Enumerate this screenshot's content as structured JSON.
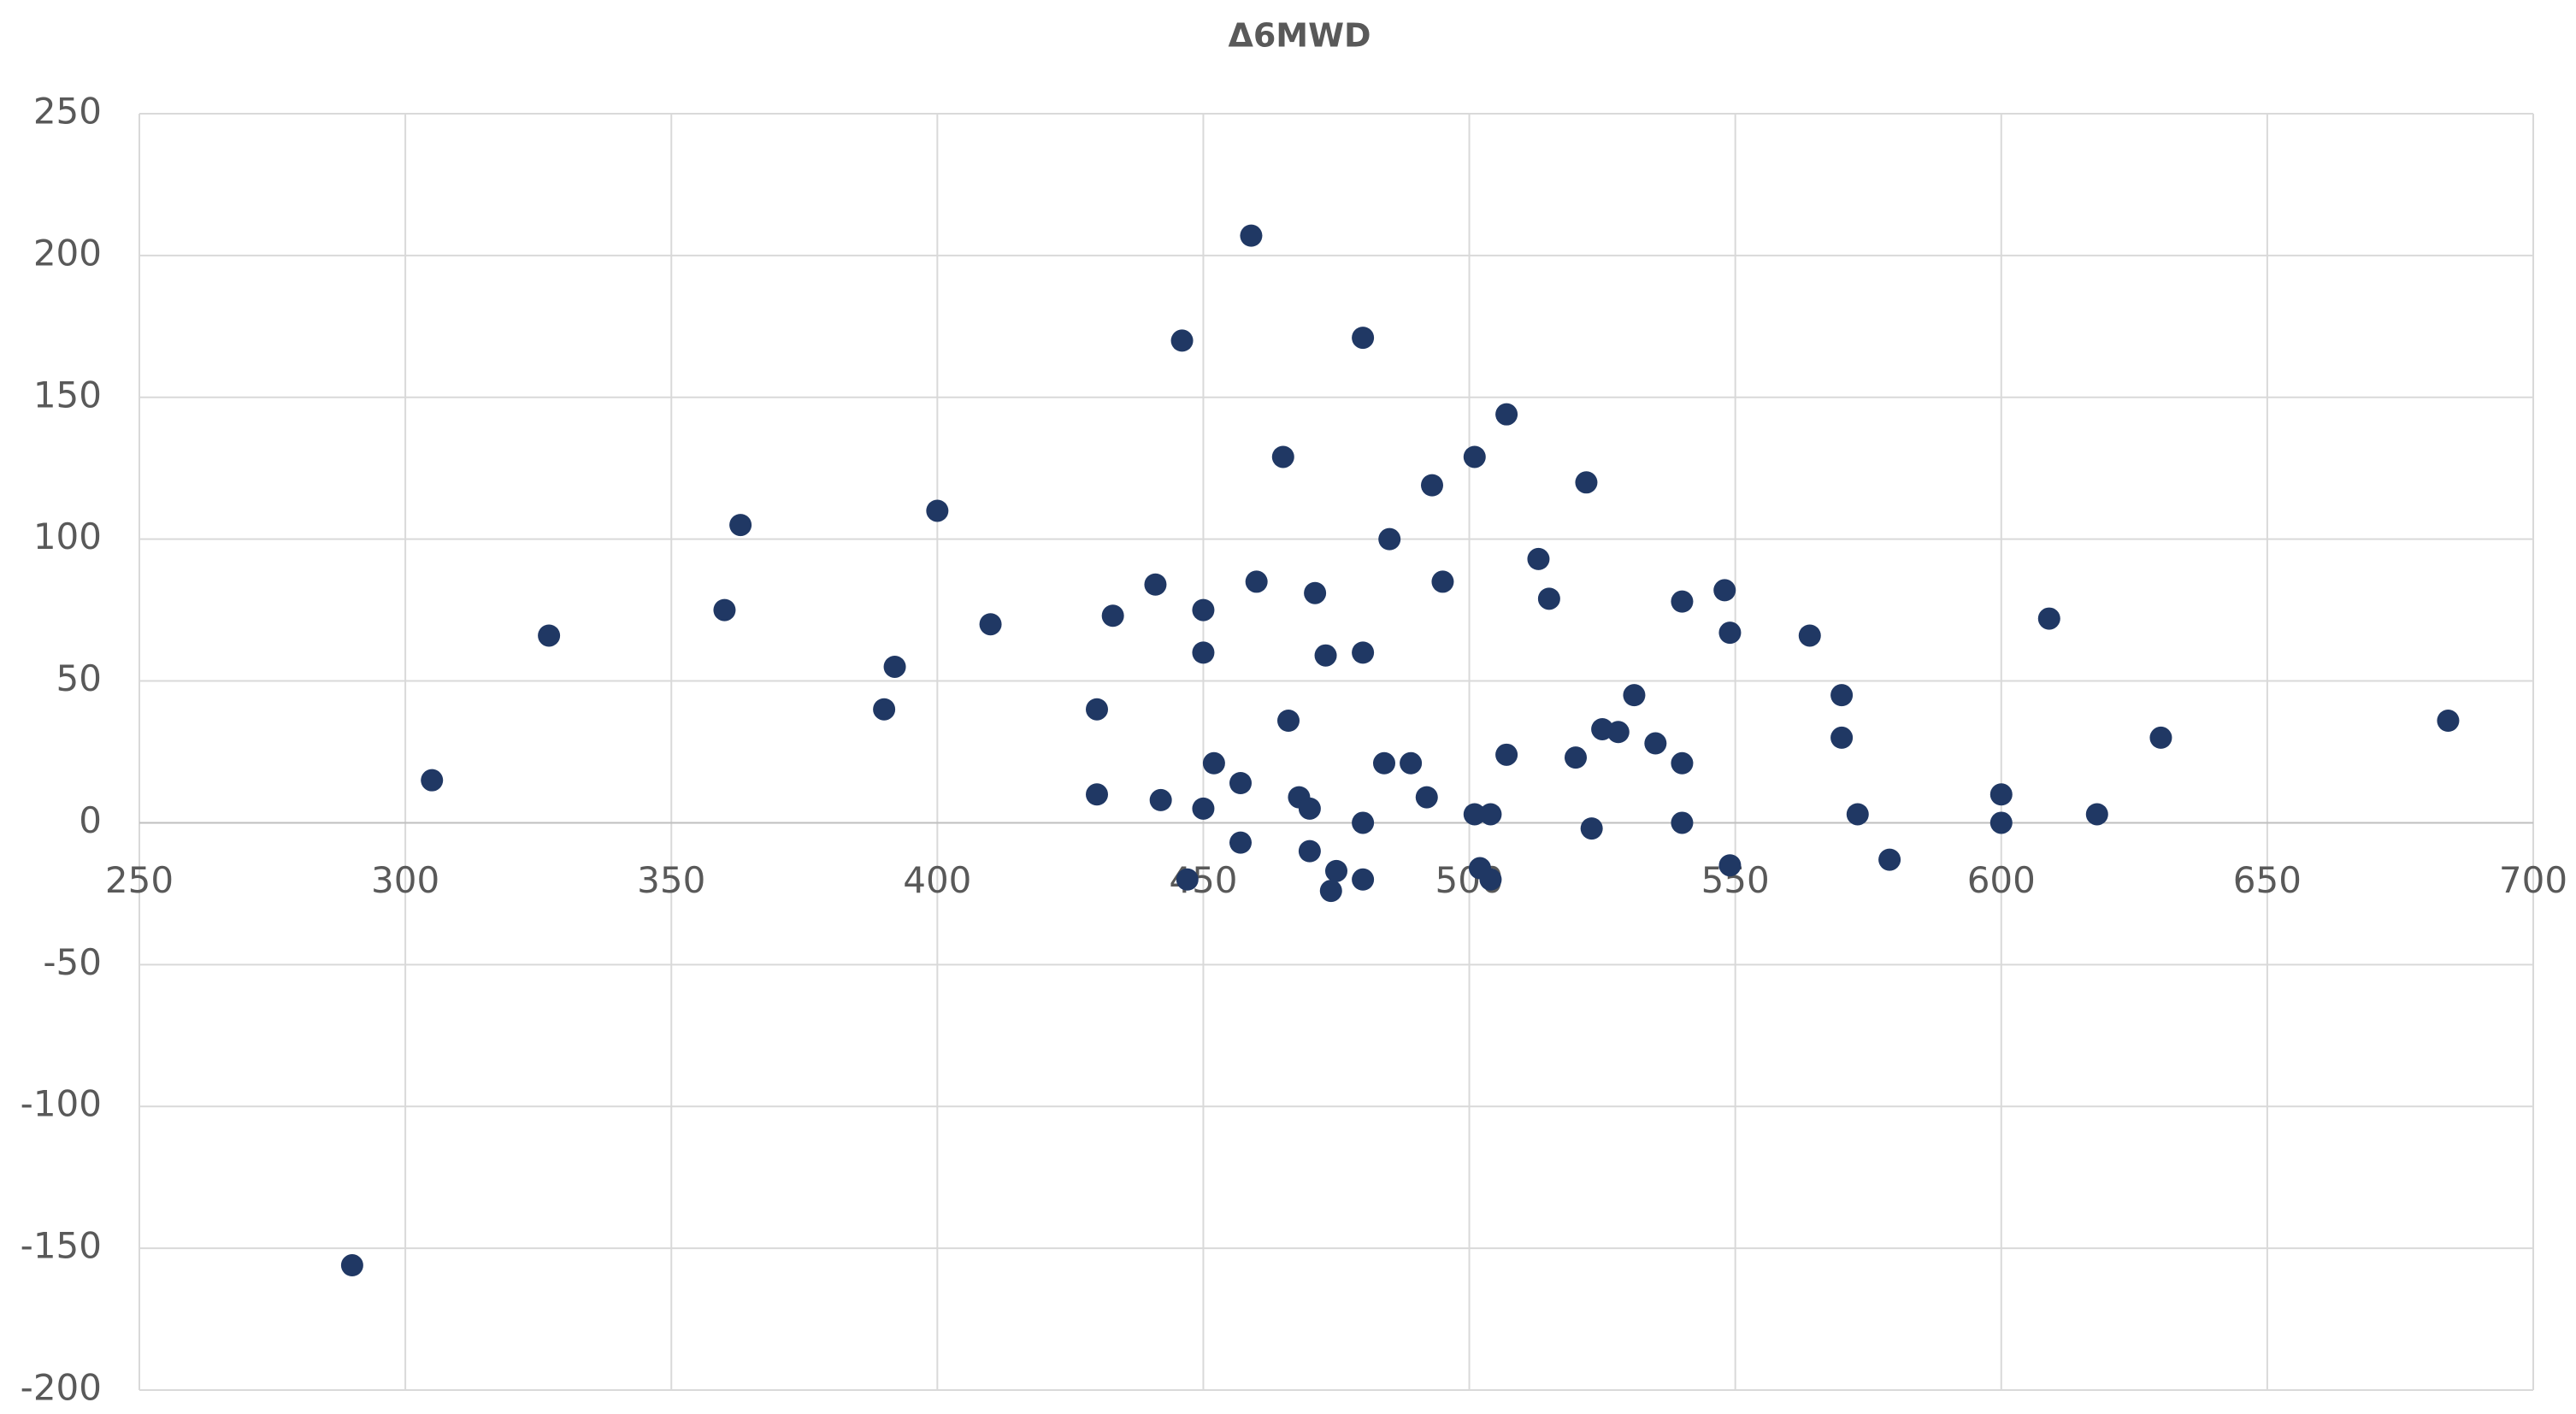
{
  "chart_data": {
    "type": "scatter",
    "title": "Δ6MWD",
    "color": "#203864",
    "grid": true,
    "xlim": [
      250,
      700
    ],
    "xticks": [
      250,
      300,
      350,
      400,
      450,
      500,
      550,
      600,
      650,
      700
    ],
    "ylim": [
      -200,
      250
    ],
    "yticks": [
      -200,
      -150,
      -100,
      -50,
      0,
      50,
      100,
      150,
      200,
      250
    ],
    "x": [
      290,
      305,
      327,
      360,
      363,
      390,
      392,
      400,
      410,
      430,
      430,
      433,
      441,
      442,
      446,
      447,
      450,
      450,
      450,
      452,
      457,
      457,
      459,
      460,
      465,
      466,
      468,
      470,
      470,
      471,
      473,
      474,
      475,
      480,
      480,
      480,
      480,
      484,
      485,
      489,
      492,
      493,
      495,
      501,
      501,
      502,
      504,
      504,
      507,
      507,
      513,
      515,
      520,
      522,
      523,
      525,
      528,
      531,
      535,
      540,
      540,
      540,
      548,
      549,
      549,
      564,
      570,
      570,
      573,
      579,
      600,
      600,
      609,
      618,
      630,
      684
    ],
    "values": [
      -156,
      15,
      66,
      75,
      105,
      40,
      55,
      110,
      70,
      40,
      10,
      73,
      84,
      8,
      170,
      -20,
      75,
      60,
      5,
      21,
      14,
      -7,
      207,
      85,
      129,
      36,
      9,
      -10,
      5,
      81,
      59,
      -24,
      -17,
      171,
      60,
      0,
      -20,
      21,
      100,
      21,
      9,
      119,
      85,
      129,
      3,
      -16,
      3,
      -20,
      144,
      24,
      93,
      79,
      23,
      120,
      -2,
      33,
      32,
      45,
      28,
      78,
      21,
      0,
      82,
      -15,
      67,
      66,
      45,
      30,
      3,
      -13,
      10,
      0,
      72,
      3,
      30,
      36
    ]
  }
}
